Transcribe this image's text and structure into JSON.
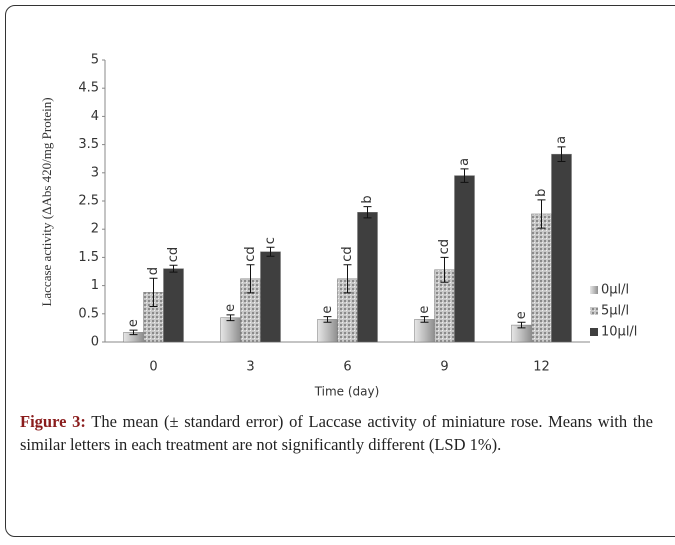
{
  "chart_data": {
    "type": "bar",
    "ylabel": "Laccase activity (ΔAbs 420/mg Protein)",
    "xlabel": "Time (day)",
    "categories": [
      "0",
      "3",
      "6",
      "9",
      "12"
    ],
    "ylim": [
      0,
      5
    ],
    "yticks": [
      0,
      0.5,
      1,
      1.5,
      2,
      2.5,
      3,
      3.5,
      4,
      4.5,
      5
    ],
    "legend": "right",
    "series": [
      {
        "name": "0µl/l",
        "color": "#bdbdbd",
        "values": [
          0.17,
          0.43,
          0.4,
          0.4,
          0.3
        ],
        "errors": [
          0.04,
          0.05,
          0.05,
          0.05,
          0.05
        ],
        "labels": [
          "e",
          "e",
          "e",
          "e",
          "e"
        ]
      },
      {
        "name": "5µl/l",
        "color": "#a8a8a8",
        "values": [
          0.88,
          1.12,
          1.12,
          1.28,
          2.27
        ],
        "errors": [
          0.25,
          0.25,
          0.25,
          0.22,
          0.25
        ],
        "labels": [
          "d",
          "cd",
          "cd",
          "cd",
          "b"
        ]
      },
      {
        "name": "10µl/l",
        "color": "#3f3f3f",
        "values": [
          1.3,
          1.6,
          2.3,
          2.95,
          3.33
        ],
        "errors": [
          0.06,
          0.08,
          0.1,
          0.12,
          0.13
        ],
        "labels": [
          "cd",
          "c",
          "b",
          "a",
          "a"
        ]
      }
    ]
  },
  "caption": {
    "label": "Figure 3:",
    "text": "The mean (± standard error) of Laccase activity of miniature rose. Means with the similar letters in each treatment are not significantly different (LSD 1%)."
  }
}
